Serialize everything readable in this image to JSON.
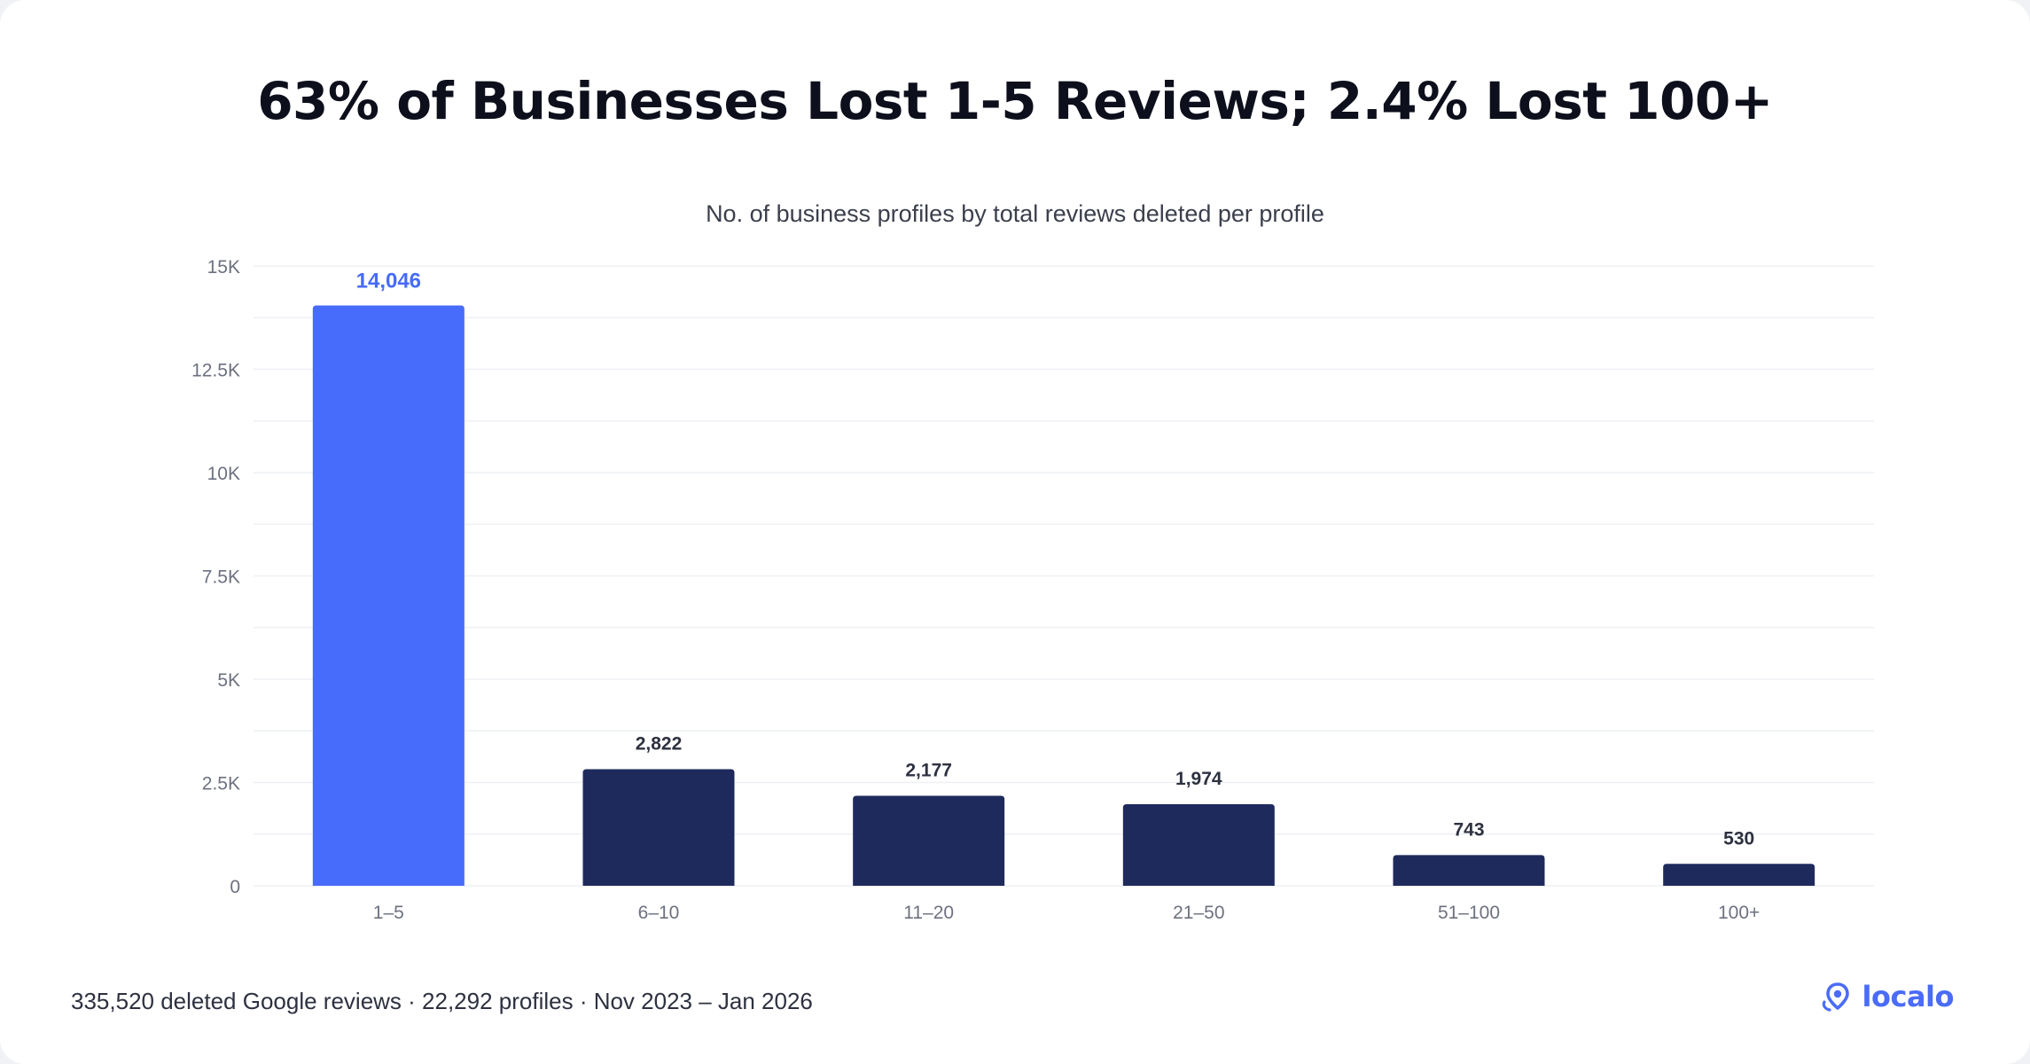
{
  "footer": {
    "note": "335,520 deleted Google reviews · 22,292 profiles · Nov 2023 – Jan 2026",
    "brand": "localo",
    "brand_icon": "location-pin-icon"
  },
  "colors": {
    "highlight": "#476bfb",
    "bar": "#1f2a5c",
    "brand": "#4a6cf7"
  },
  "chart_data": {
    "type": "bar",
    "title": "63% of Businesses Lost 1-5 Reviews; 2.4% Lost 100+",
    "subtitle": "No. of business profiles by total reviews deleted per profile",
    "categories": [
      "1–5",
      "6–10",
      "11–20",
      "21–50",
      "51–100",
      "100+"
    ],
    "values": [
      14046,
      2822,
      2177,
      1974,
      743,
      530
    ],
    "value_labels": [
      "14,046",
      "2,822",
      "2,177",
      "1,974",
      "743",
      "530"
    ],
    "highlight_index": 0,
    "ylim": [
      0,
      15000
    ],
    "yticks": [
      0,
      2500,
      5000,
      7500,
      10000,
      12500,
      15000
    ],
    "ytick_labels": [
      "0",
      "2.5K",
      "5K",
      "7.5K",
      "10K",
      "12.5K",
      "15K"
    ],
    "grid": true,
    "legend": "none"
  }
}
